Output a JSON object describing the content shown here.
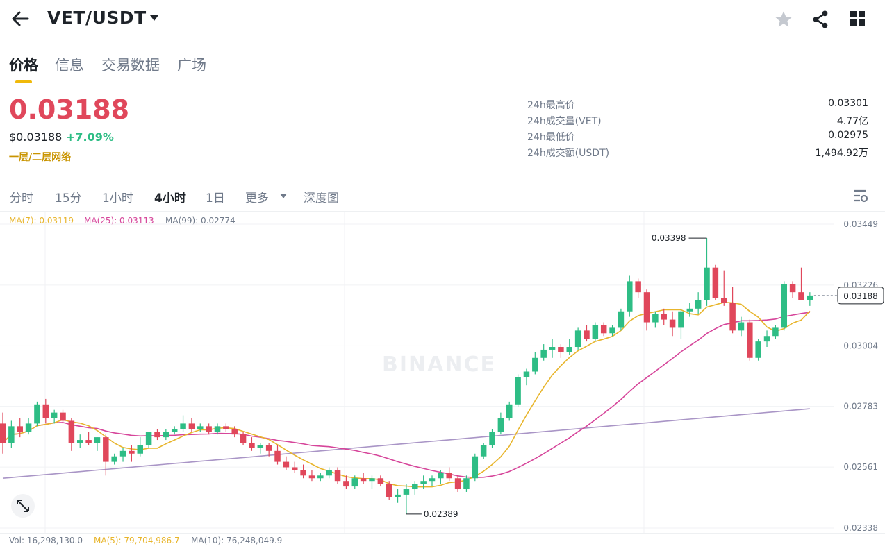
{
  "header": {
    "pair": "VET/USDT",
    "icons": [
      "back-arrow-icon",
      "dropdown-caret-icon",
      "star-icon",
      "share-icon",
      "grid-icon"
    ]
  },
  "tabs": [
    "价格",
    "信息",
    "交易数据",
    "广场"
  ],
  "price": {
    "last": "0.03188",
    "usd": "$0.03188",
    "change": "+7.09%",
    "tag": "一层/二层网络",
    "colors": {
      "down": "#e0475b",
      "up": "#2ebd85",
      "tag": "#c99400"
    }
  },
  "stats": [
    {
      "label": "24h最高价",
      "value": "0.03301"
    },
    {
      "label": "24h成交量(VET)",
      "value": "4.77亿"
    },
    {
      "label": "24h最低价",
      "value": "0.02975"
    },
    {
      "label": "24h成交额(USDT)",
      "value": "1,494.92万"
    }
  ],
  "intervals": {
    "items": [
      "分时",
      "15分",
      "1小时",
      "4小时",
      "1日",
      "更多",
      "深度图"
    ],
    "active": "4小时"
  },
  "ma": {
    "ma7": "MA(7): 0.03119",
    "ma25": "MA(25): 0.03113",
    "ma99": "MA(99): 0.02774",
    "colors": {
      "ma7": "#e8b52c",
      "ma25": "#d6459a",
      "ma99": "#a995c6"
    }
  },
  "volume": {
    "vol": "Vol: 16,298,130.0",
    "ma5": "MA(5): 79,704,986.7",
    "ma10": "MA(10): 76,248,049.9"
  },
  "watermark": "BINANCE",
  "chart_data": {
    "type": "candlestick",
    "interval": "4小时",
    "y_ticks": [
      "0.03449",
      "0.03226",
      "0.03004",
      "0.02783",
      "0.02561",
      "0.02338"
    ],
    "ylim": [
      0.02338,
      0.03449
    ],
    "last_price_label": "0.03188",
    "high_marker": "0.03398",
    "low_marker": "0.02389",
    "candles": [
      [
        0.0272,
        0.0276,
        0.0261,
        0.0265
      ],
      [
        0.0265,
        0.0273,
        0.0263,
        0.0271
      ],
      [
        0.0271,
        0.0274,
        0.0267,
        0.0269
      ],
      [
        0.0269,
        0.0274,
        0.0268,
        0.0272
      ],
      [
        0.0272,
        0.028,
        0.0271,
        0.0279
      ],
      [
        0.0279,
        0.0281,
        0.0272,
        0.0274
      ],
      [
        0.0274,
        0.0277,
        0.0272,
        0.0276
      ],
      [
        0.0276,
        0.0277,
        0.0272,
        0.0273
      ],
      [
        0.0273,
        0.0274,
        0.0262,
        0.0265
      ],
      [
        0.0265,
        0.0268,
        0.0263,
        0.0266
      ],
      [
        0.0266,
        0.0269,
        0.0264,
        0.0265
      ],
      [
        0.0265,
        0.0267,
        0.0262,
        0.0267
      ],
      [
        0.0267,
        0.0268,
        0.0253,
        0.0258
      ],
      [
        0.0258,
        0.0261,
        0.0257,
        0.026
      ],
      [
        0.026,
        0.0263,
        0.0258,
        0.0262
      ],
      [
        0.0262,
        0.0264,
        0.0258,
        0.0261
      ],
      [
        0.0261,
        0.0267,
        0.026,
        0.0264
      ],
      [
        0.0264,
        0.0269,
        0.0263,
        0.0269
      ],
      [
        0.0269,
        0.027,
        0.0266,
        0.0267
      ],
      [
        0.0267,
        0.027,
        0.0266,
        0.0269
      ],
      [
        0.0269,
        0.0271,
        0.0268,
        0.027
      ],
      [
        0.027,
        0.0275,
        0.0269,
        0.0272
      ],
      [
        0.0272,
        0.0274,
        0.0269,
        0.027
      ],
      [
        0.027,
        0.0272,
        0.0269,
        0.0271
      ],
      [
        0.0271,
        0.0272,
        0.0268,
        0.0269
      ],
      [
        0.0269,
        0.0272,
        0.0268,
        0.0271
      ],
      [
        0.0271,
        0.0272,
        0.0269,
        0.027
      ],
      [
        0.027,
        0.0271,
        0.0267,
        0.0268
      ],
      [
        0.0268,
        0.0269,
        0.0264,
        0.0265
      ],
      [
        0.0265,
        0.0267,
        0.0262,
        0.0263
      ],
      [
        0.0263,
        0.0265,
        0.0261,
        0.0264
      ],
      [
        0.0264,
        0.0265,
        0.026,
        0.0262
      ],
      [
        0.0262,
        0.0264,
        0.0257,
        0.0258
      ],
      [
        0.0258,
        0.026,
        0.0255,
        0.0256
      ],
      [
        0.0256,
        0.0258,
        0.0254,
        0.0255
      ],
      [
        0.0255,
        0.0257,
        0.0252,
        0.0253
      ],
      [
        0.0253,
        0.0255,
        0.0251,
        0.0252
      ],
      [
        0.0252,
        0.0254,
        0.0251,
        0.0253
      ],
      [
        0.0253,
        0.0256,
        0.0252,
        0.0255
      ],
      [
        0.0255,
        0.0256,
        0.025,
        0.0251
      ],
      [
        0.0251,
        0.0253,
        0.0248,
        0.0249
      ],
      [
        0.0249,
        0.0253,
        0.0248,
        0.0252
      ],
      [
        0.0252,
        0.0254,
        0.025,
        0.0251
      ],
      [
        0.0251,
        0.0253,
        0.0248,
        0.0252
      ],
      [
        0.0252,
        0.0253,
        0.0249,
        0.025
      ],
      [
        0.025,
        0.0251,
        0.0244,
        0.0245
      ],
      [
        0.0245,
        0.0248,
        0.0243,
        0.0246
      ],
      [
        0.0246,
        0.025,
        0.02389,
        0.0248
      ],
      [
        0.0248,
        0.0251,
        0.0246,
        0.025
      ],
      [
        0.025,
        0.0253,
        0.0248,
        0.0251
      ],
      [
        0.0251,
        0.0253,
        0.0249,
        0.0252
      ],
      [
        0.0252,
        0.0255,
        0.025,
        0.0254
      ],
      [
        0.0254,
        0.0256,
        0.0251,
        0.0252
      ],
      [
        0.0252,
        0.0253,
        0.0247,
        0.0248
      ],
      [
        0.0248,
        0.0253,
        0.0247,
        0.0252
      ],
      [
        0.0252,
        0.0261,
        0.0251,
        0.026
      ],
      [
        0.026,
        0.0265,
        0.0259,
        0.0264
      ],
      [
        0.0264,
        0.027,
        0.0263,
        0.0269
      ],
      [
        0.0269,
        0.0276,
        0.0268,
        0.0274
      ],
      [
        0.0274,
        0.028,
        0.0273,
        0.0279
      ],
      [
        0.0279,
        0.029,
        0.0278,
        0.0289
      ],
      [
        0.0289,
        0.0292,
        0.0286,
        0.0291
      ],
      [
        0.0291,
        0.0298,
        0.029,
        0.0296
      ],
      [
        0.0296,
        0.0301,
        0.0295,
        0.0299
      ],
      [
        0.0299,
        0.0303,
        0.0296,
        0.03
      ],
      [
        0.03,
        0.0301,
        0.0296,
        0.0298
      ],
      [
        0.0298,
        0.0303,
        0.0297,
        0.03
      ],
      [
        0.03,
        0.0307,
        0.0299,
        0.0306
      ],
      [
        0.0306,
        0.0308,
        0.0302,
        0.0303
      ],
      [
        0.0303,
        0.0309,
        0.0302,
        0.0308
      ],
      [
        0.0308,
        0.0309,
        0.0304,
        0.0305
      ],
      [
        0.0305,
        0.0308,
        0.0304,
        0.0307
      ],
      [
        0.0307,
        0.0314,
        0.0306,
        0.0313
      ],
      [
        0.0313,
        0.0326,
        0.0311,
        0.0324
      ],
      [
        0.0324,
        0.0325,
        0.0318,
        0.032
      ],
      [
        0.032,
        0.0321,
        0.0306,
        0.0309
      ],
      [
        0.0309,
        0.0313,
        0.0307,
        0.0312
      ],
      [
        0.0312,
        0.0314,
        0.0308,
        0.031
      ],
      [
        0.031,
        0.0313,
        0.0304,
        0.0307
      ],
      [
        0.0307,
        0.0314,
        0.0303,
        0.0313
      ],
      [
        0.0313,
        0.0316,
        0.0311,
        0.0314
      ],
      [
        0.0314,
        0.032,
        0.0312,
        0.0317
      ],
      [
        0.0317,
        0.03398,
        0.0315,
        0.0329
      ],
      [
        0.0329,
        0.033,
        0.0317,
        0.0318
      ],
      [
        0.0318,
        0.0328,
        0.0315,
        0.0316
      ],
      [
        0.0316,
        0.0322,
        0.0305,
        0.0306
      ],
      [
        0.0306,
        0.0311,
        0.0304,
        0.0309
      ],
      [
        0.0309,
        0.031,
        0.0295,
        0.0296
      ],
      [
        0.0296,
        0.0303,
        0.0295,
        0.0302
      ],
      [
        0.0302,
        0.0306,
        0.03,
        0.0304
      ],
      [
        0.0304,
        0.0308,
        0.0303,
        0.0307
      ],
      [
        0.0307,
        0.0324,
        0.0306,
        0.0323
      ],
      [
        0.0323,
        0.0324,
        0.0318,
        0.032
      ],
      [
        0.032,
        0.0329,
        0.0317,
        0.0317
      ],
      [
        0.0317,
        0.032,
        0.0315,
        0.03188
      ]
    ]
  }
}
